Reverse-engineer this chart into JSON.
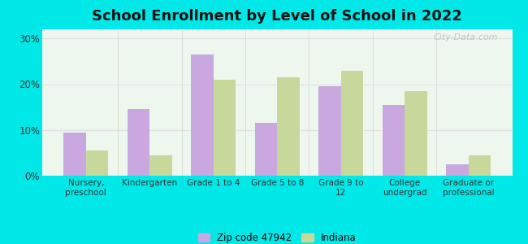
{
  "title": "School Enrollment by Level of School in 2022",
  "categories": [
    "Nursery,\npreschool",
    "Kindergarten",
    "Grade 1 to 4",
    "Grade 5 to 8",
    "Grade 9 to\n12",
    "College\nundergrad",
    "Graduate or\nprofessional"
  ],
  "zip_values": [
    9.5,
    14.5,
    26.5,
    11.5,
    19.5,
    15.5,
    2.5
  ],
  "indiana_values": [
    5.5,
    4.5,
    21.0,
    21.5,
    23.0,
    18.5,
    4.5
  ],
  "zip_color": "#c9a8e0",
  "indiana_color": "#c8d89a",
  "background_outer": "#00e8e8",
  "background_inner_top": "#e8f5e8",
  "background_inner_bottom": "#f5fff5",
  "ylim": [
    0,
    32
  ],
  "yticks": [
    0,
    10,
    20,
    30
  ],
  "ytick_labels": [
    "0%",
    "10%",
    "20%",
    "30%"
  ],
  "legend_zip_label": "Zip code 47942",
  "legend_indiana_label": "Indiana",
  "watermark": "City-Data.com",
  "title_fontsize": 13,
  "bar_width": 0.35,
  "grid_color": "#dddddd",
  "axis_label_fontsize": 7.5
}
